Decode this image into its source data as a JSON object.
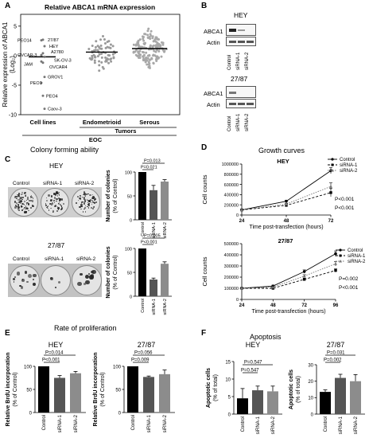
{
  "panels": {
    "A": {
      "label": "A",
      "title": "Relative ABCA1 mRNA expression",
      "ylabel_line1": "Relative expression of ABCA1",
      "ylabel_line2": "(Log₂)",
      "yticks": [
        "5",
        "0",
        "-5",
        "-10"
      ],
      "group_cell_lines": "Cell lines",
      "group_endometrioid": "Endometrioid",
      "group_serous": "Serous",
      "group_tumors": "Tumors",
      "group_eoc": "EOC",
      "cell_lines": [
        {
          "name": "PEO14",
          "value": 2.6
        },
        {
          "name": "27/87",
          "value": 2.7
        },
        {
          "name": "HEY",
          "value": 1.6
        },
        {
          "name": "OVCAR-3",
          "value": 0.1
        },
        {
          "name": "A2780",
          "value": 0.4
        },
        {
          "name": "SK-OV-3",
          "value": -0.2
        },
        {
          "name": "JAM",
          "value": -1.0
        },
        {
          "name": "OVCAR4",
          "value": -1.2
        },
        {
          "name": "GROV1",
          "value": -3.6
        },
        {
          "name": "PEO1",
          "value": -4.6
        },
        {
          "name": "PEO4",
          "value": -6.8
        },
        {
          "name": "Caov-3",
          "value": -9.0
        }
      ]
    },
    "B": {
      "label": "B",
      "hey_title": "HEY",
      "c2787_title": "27/87",
      "row_abca1": "ABCA1",
      "row_actin": "Actin",
      "lanes": [
        "Control",
        "siRNA-1",
        "siRNA-2"
      ]
    },
    "C": {
      "label": "C",
      "title": "Colony forming ability",
      "hey": "HEY",
      "c2787": "27/87",
      "dish_labels": [
        "Control",
        "siRNA-1",
        "siRNA-2"
      ],
      "ylabel_line1": "Number of colonies",
      "ylabel_line2": "(% of Control)",
      "hey_p_top": "P=0.013",
      "hey_p_bottom": "P=0.021",
      "c2787_p_top": "P=0.005",
      "c2787_p_bottom": "P<0.001"
    },
    "D": {
      "label": "D",
      "title": "Growth curves",
      "hey": "HEY",
      "c2787": "27/87",
      "ylabel": "Cell counts",
      "xlabel": "Time post-transfection (hours)",
      "legend": [
        "Control",
        "siRNA-1",
        "siRNA-2"
      ],
      "hey_p1": "P<0.001",
      "hey_p2": "P<0.001",
      "c2787_p1": "P=0.002",
      "c2787_p2": "P<0.001"
    },
    "E": {
      "label": "E",
      "title": "Rate of proliferation",
      "hey": "HEY",
      "c2787": "27/87",
      "ylabel_line1": "Relative BrdU incorporation",
      "ylabel_line2": "(% of Control)",
      "hey_p_top": "P=0.014",
      "hey_p_bottom": "P<0.001",
      "c2787_p_top": "P=0.056",
      "c2787_p_bottom": "P=0.009"
    },
    "F": {
      "label": "F",
      "title": "Apoptosis",
      "hey": "HEY",
      "c2787": "27/87",
      "ylabel_line1": "Apoptotic cells",
      "ylabel_line2": "(% of total)",
      "hey_p_top": "P=0.547",
      "hey_p_bottom": "P=0.547",
      "c2787_p_top": "P=0.031",
      "c2787_p_bottom": "P=0.002"
    }
  },
  "chart_data": [
    {
      "id": "C_hey",
      "type": "bar",
      "categories": [
        "Control",
        "siRNA-1",
        "siRNA-2"
      ],
      "values": [
        100,
        62,
        80
      ],
      "errors": [
        0,
        10,
        4
      ],
      "ylabel": "Number of colonies (% of Control)",
      "yticks": [
        0,
        50,
        100
      ],
      "ylim": [
        0,
        100
      ]
    },
    {
      "id": "C_2787",
      "type": "bar",
      "categories": [
        "Control",
        "siRNA-1",
        "siRNA-2"
      ],
      "values": [
        100,
        35,
        68
      ],
      "errors": [
        0,
        3,
        4
      ],
      "ylabel": "Number of colonies (% of Control)",
      "yticks": [
        0,
        50,
        100
      ],
      "ylim": [
        0,
        100
      ]
    },
    {
      "id": "D_hey",
      "type": "line",
      "x": [
        24,
        48,
        72
      ],
      "series": [
        {
          "name": "Control",
          "values": [
            100000,
            270000,
            870000
          ],
          "errors": [
            0,
            20000,
            60000
          ]
        },
        {
          "name": "siRNA-1",
          "values": [
            100000,
            190000,
            440000
          ],
          "errors": [
            0,
            15000,
            80000
          ]
        },
        {
          "name": "siRNA-2",
          "values": [
            100000,
            215000,
            560000
          ],
          "errors": [
            0,
            15000,
            70000
          ]
        }
      ],
      "yticks": [
        0,
        200000,
        400000,
        600000,
        800000,
        1000000
      ],
      "ylim": [
        0,
        1000000
      ],
      "xlim": [
        24,
        72
      ],
      "xlabel": "Time post-transfection (hours)",
      "ylabel": "Cell counts"
    },
    {
      "id": "D_2787",
      "type": "line",
      "x": [
        24,
        48,
        72,
        96
      ],
      "series": [
        {
          "name": "Control",
          "values": [
            100000,
            120000,
            250000,
            410000
          ],
          "errors": [
            0,
            8000,
            15000,
            25000
          ]
        },
        {
          "name": "siRNA-1",
          "values": [
            100000,
            100000,
            180000,
            260000
          ],
          "errors": [
            0,
            8000,
            12000,
            15000
          ]
        },
        {
          "name": "siRNA-2",
          "values": [
            100000,
            110000,
            210000,
            320000
          ],
          "errors": [
            0,
            8000,
            12000,
            20000
          ]
        }
      ],
      "yticks": [
        0,
        100000,
        200000,
        300000,
        400000,
        500000
      ],
      "ylim": [
        0,
        500000
      ],
      "xlim": [
        24,
        96
      ],
      "xlabel": "Time post-transfection (hours)",
      "ylabel": "Cell counts"
    },
    {
      "id": "E_hey",
      "type": "bar",
      "categories": [
        "Control",
        "siRNA-1",
        "siRNA-2"
      ],
      "values": [
        100,
        75,
        85
      ],
      "errors": [
        0,
        5,
        4
      ],
      "yticks": [
        0,
        50,
        100
      ],
      "ylim": [
        0,
        100
      ],
      "ylabel": "Relative BrdU incorporation (% of Control)"
    },
    {
      "id": "E_2787",
      "type": "bar",
      "categories": [
        "Control",
        "siRNA-1",
        "siRNA-2"
      ],
      "values": [
        100,
        77,
        83
      ],
      "errors": [
        0,
        2,
        9
      ],
      "yticks": [
        0,
        50,
        100
      ],
      "ylim": [
        0,
        100
      ],
      "ylabel": "Relative BrdU incorporation (% of Control)"
    },
    {
      "id": "F_hey",
      "type": "bar",
      "categories": [
        "Control",
        "siRNA-1",
        "siRNA-2"
      ],
      "values": [
        4.5,
        6.8,
        6.5
      ],
      "errors": [
        2.8,
        1.2,
        1.5
      ],
      "yticks": [
        0,
        5,
        10,
        15
      ],
      "ylim": [
        0,
        15
      ],
      "ylabel": "Apoptotic cells (% of total)"
    },
    {
      "id": "F_2787",
      "type": "bar",
      "categories": [
        "Control",
        "siRNA-1",
        "siRNA-2"
      ],
      "values": [
        13.5,
        22,
        20
      ],
      "errors": [
        1.2,
        2.2,
        4
      ],
      "yticks": [
        0,
        10,
        20,
        30
      ],
      "ylim": [
        0,
        30
      ],
      "ylabel": "Apoptotic cells (% of total)"
    }
  ]
}
